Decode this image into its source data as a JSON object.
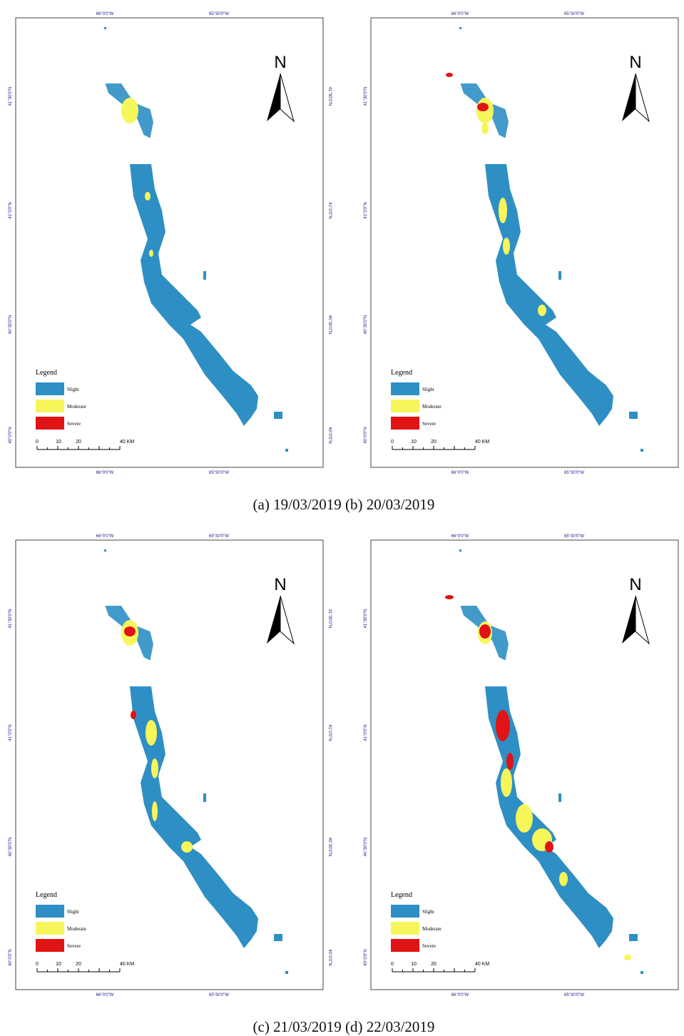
{
  "map_labels": {
    "north": "N",
    "longitudes": [
      "66°0'0\"W",
      "65°30'0\"W"
    ],
    "latitudes": [
      "41°30'0\"N",
      "41°0'0\"N",
      "40°30'0\"N",
      "40°0'0\"N"
    ],
    "legend": {
      "title": "Legend",
      "items": [
        {
          "name": "Slight",
          "color": "#2e8fc4"
        },
        {
          "name": "Moderate",
          "color": "#f6f65a"
        },
        {
          "name": "Severe",
          "color": "#e01414"
        }
      ]
    },
    "scale": [
      "0",
      "10",
      "20",
      "40 KM"
    ]
  },
  "captions": [
    "(a) 19/03/2019 (b) 20/03/2019",
    "(c) 21/03/2019 (d) 22/03/2019"
  ]
}
